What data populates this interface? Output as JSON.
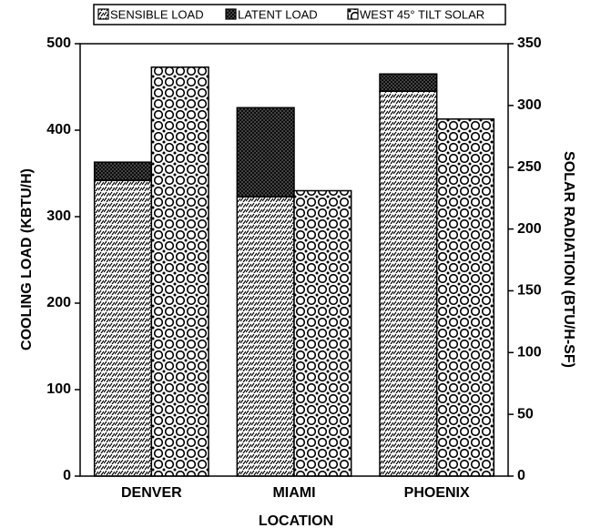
{
  "chart_data": {
    "type": "bar",
    "xlabel": "LOCATION",
    "ylabel": "COOLING LOAD (KBTU/H)",
    "y2label": "SOLAR RADIATION (BTU/H-SF)",
    "categories": [
      "DENVER",
      "MIAMI",
      "PHOENIX"
    ],
    "series": [
      {
        "name": "SENSIBLE LOAD",
        "pattern": "dashes",
        "color": "#000000",
        "axis": "y",
        "stacked": true,
        "values": [
          342,
          323,
          445
        ]
      },
      {
        "name": "LATENT LOAD",
        "pattern": "crosshatch",
        "color": "#000000",
        "axis": "y",
        "stacked": true,
        "values": [
          21,
          103,
          20
        ]
      },
      {
        "name": "WEST 45° TILT SOLAR",
        "pattern": "circles",
        "color": "#000000",
        "axis": "y2",
        "stacked": false,
        "values": [
          331,
          231,
          289
        ]
      }
    ],
    "ylim": [
      0,
      500
    ],
    "yticks": [
      0,
      100,
      200,
      300,
      400,
      500
    ],
    "y2lim": [
      0,
      350
    ],
    "y2ticks": [
      0,
      50,
      100,
      150,
      200,
      250,
      300,
      350
    ],
    "legend": "top"
  }
}
